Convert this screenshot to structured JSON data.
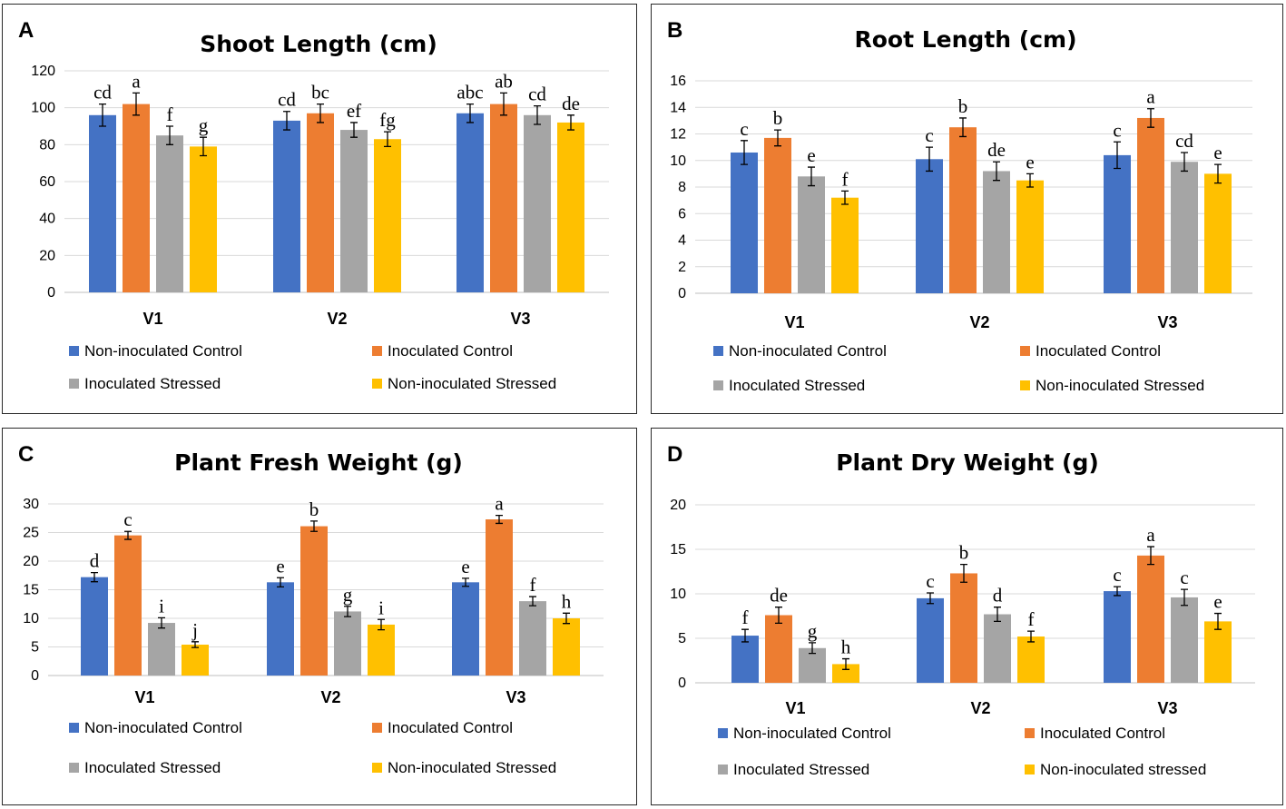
{
  "colors": {
    "non_inoculated_control": "#4472C4",
    "inoculated_control": "#ED7D31",
    "inoculated_stressed": "#A5A5A5",
    "non_inoculated_stressed": "#FFC000"
  },
  "chart_data": [
    {
      "panel": "A",
      "type": "bar",
      "title": "Shoot Length (cm)",
      "categories": [
        "V1",
        "V2",
        "V3"
      ],
      "ylim": [
        0,
        120
      ],
      "yticks": [
        0,
        20,
        40,
        60,
        80,
        100,
        120
      ],
      "series": [
        {
          "name": "Non-inoculated Control",
          "color": "#4472C4",
          "values": [
            96,
            93,
            97
          ],
          "errors": [
            6,
            5,
            5
          ],
          "letters": [
            "cd",
            "cd",
            "abc"
          ]
        },
        {
          "name": "Inoculated Control",
          "color": "#ED7D31",
          "values": [
            102,
            97,
            102
          ],
          "errors": [
            6,
            5,
            6
          ],
          "letters": [
            "a",
            "bc",
            "ab"
          ]
        },
        {
          "name": "Inoculated Stressed",
          "color": "#A5A5A5",
          "values": [
            85,
            88,
            96
          ],
          "errors": [
            5,
            4,
            5
          ],
          "letters": [
            "f",
            "ef",
            "cd"
          ]
        },
        {
          "name": "Non-inoculated Stressed",
          "color": "#FFC000",
          "values": [
            79,
            83,
            92
          ],
          "errors": [
            5,
            4,
            4
          ],
          "letters": [
            "g",
            "fg",
            "de"
          ]
        }
      ]
    },
    {
      "panel": "B",
      "type": "bar",
      "title": "Root Length (cm)",
      "categories": [
        "V1",
        "V2",
        "V3"
      ],
      "ylim": [
        0,
        16
      ],
      "yticks": [
        0,
        2,
        4,
        6,
        8,
        10,
        12,
        14,
        16
      ],
      "series": [
        {
          "name": "Non-inoculated Control",
          "color": "#4472C4",
          "values": [
            10.6,
            10.1,
            10.4
          ],
          "errors": [
            0.9,
            0.9,
            1.0
          ],
          "letters": [
            "c",
            "c",
            "c"
          ]
        },
        {
          "name": "Inoculated Control",
          "color": "#ED7D31",
          "values": [
            11.7,
            12.5,
            13.2
          ],
          "errors": [
            0.6,
            0.7,
            0.7
          ],
          "letters": [
            "b",
            "b",
            "a"
          ]
        },
        {
          "name": "Inoculated Stressed",
          "color": "#A5A5A5",
          "values": [
            8.8,
            9.2,
            9.9
          ],
          "errors": [
            0.7,
            0.7,
            0.7
          ],
          "letters": [
            "e",
            "de",
            "cd"
          ]
        },
        {
          "name": "Non-inoculated Stressed",
          "color": "#FFC000",
          "values": [
            7.2,
            8.5,
            9.0
          ],
          "errors": [
            0.5,
            0.5,
            0.7
          ],
          "letters": [
            "f",
            "e",
            "e"
          ]
        }
      ]
    },
    {
      "panel": "C",
      "type": "bar",
      "title": "Plant Fresh Weight (g)",
      "categories": [
        "V1",
        "V2",
        "V3"
      ],
      "ylim": [
        0,
        30
      ],
      "yticks": [
        0,
        5,
        10,
        15,
        20,
        25,
        30
      ],
      "series": [
        {
          "name": "Non-inoculated Control",
          "color": "#4472C4",
          "values": [
            17.2,
            16.3,
            16.3
          ],
          "errors": [
            0.8,
            0.8,
            0.7
          ],
          "letters": [
            "d",
            "e",
            "e"
          ]
        },
        {
          "name": "Inoculated Control",
          "color": "#ED7D31",
          "values": [
            24.5,
            26.1,
            27.3
          ],
          "errors": [
            0.7,
            0.9,
            0.7
          ],
          "letters": [
            "c",
            "b",
            "a"
          ]
        },
        {
          "name": "Inoculated Stressed",
          "color": "#A5A5A5",
          "values": [
            9.2,
            11.2,
            13.0
          ],
          "errors": [
            0.9,
            0.9,
            0.8
          ],
          "letters": [
            "i",
            "g",
            "f"
          ]
        },
        {
          "name": "Non-inoculated Stressed",
          "color": "#FFC000",
          "values": [
            5.4,
            8.9,
            10.0
          ],
          "errors": [
            0.5,
            0.9,
            0.9
          ],
          "letters": [
            "j",
            "i",
            "h"
          ]
        }
      ]
    },
    {
      "panel": "D",
      "type": "bar",
      "title": "Plant Dry Weight (g)",
      "categories": [
        "V1",
        "V2",
        "V3"
      ],
      "ylim": [
        0,
        20
      ],
      "yticks": [
        0,
        5,
        10,
        15,
        20
      ],
      "series": [
        {
          "name": "Non-inoculated Control",
          "color": "#4472C4",
          "values": [
            5.3,
            9.5,
            10.3
          ],
          "errors": [
            0.7,
            0.6,
            0.5
          ],
          "letters": [
            "f",
            "c",
            "c"
          ]
        },
        {
          "name": "Inoculated Control",
          "color": "#ED7D31",
          "values": [
            7.6,
            12.3,
            14.3
          ],
          "errors": [
            0.9,
            1.0,
            1.0
          ],
          "letters": [
            "de",
            "b",
            "a"
          ]
        },
        {
          "name": "Inoculated Stressed",
          "color": "#A5A5A5",
          "values": [
            3.9,
            7.7,
            9.6
          ],
          "errors": [
            0.6,
            0.8,
            0.9
          ],
          "letters": [
            "g",
            "d",
            "c"
          ]
        },
        {
          "name": "Non-inoculated stressed",
          "color": "#FFC000",
          "values": [
            2.1,
            5.2,
            6.9
          ],
          "errors": [
            0.6,
            0.6,
            0.9
          ],
          "letters": [
            "h",
            "f",
            "e"
          ]
        }
      ]
    }
  ]
}
